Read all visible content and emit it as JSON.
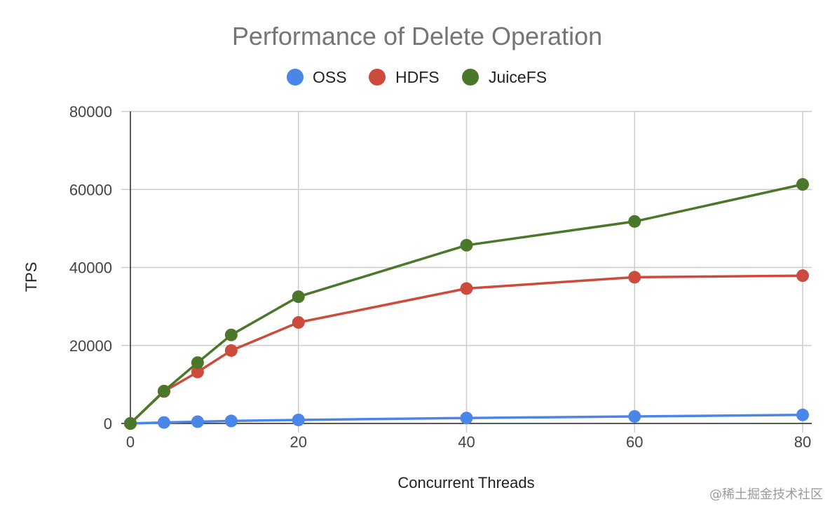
{
  "chart_data": {
    "type": "line",
    "title": "Performance of Delete Operation",
    "xlabel": "Concurrent Threads",
    "ylabel": "TPS",
    "xlim": [
      0,
      80
    ],
    "ylim": [
      0,
      80000
    ],
    "x_ticks": [
      "0",
      "20",
      "40",
      "60",
      "80"
    ],
    "x_tick_values": [
      0,
      20,
      40,
      60,
      80
    ],
    "y_ticks": [
      "0",
      "20000",
      "40000",
      "60000",
      "80000"
    ],
    "y_tick_values": [
      0,
      20000,
      40000,
      60000,
      80000
    ],
    "grid": true,
    "legend_position": "top",
    "x": [
      0,
      4,
      8,
      12,
      20,
      40,
      60,
      80
    ],
    "series": [
      {
        "name": "OSS",
        "color": "#4a86e8",
        "values": [
          0,
          250,
          450,
          650,
          900,
          1400,
          1800,
          2200
        ]
      },
      {
        "name": "HDFS",
        "color": "#cc4b3c",
        "values": [
          0,
          8200,
          13200,
          18700,
          25900,
          34600,
          37500,
          37900
        ]
      },
      {
        "name": "JuiceFS",
        "color": "#4a7729",
        "values": [
          0,
          8300,
          15600,
          22700,
          32500,
          45700,
          51800,
          61300
        ]
      }
    ]
  },
  "watermark": "@稀土掘金技术社区"
}
